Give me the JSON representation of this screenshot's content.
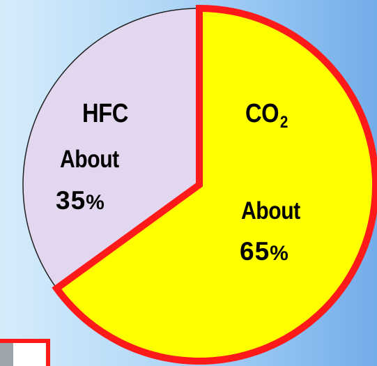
{
  "chart_data": {
    "type": "pie",
    "slices": [
      {
        "label": "CO2",
        "value": 65,
        "color": "#ffff00",
        "callout": "About",
        "value_label": "65%"
      },
      {
        "label": "HFC",
        "value": 35,
        "color": "#e3d7ef",
        "callout": "About",
        "value_label": "35%"
      }
    ],
    "highlight_color": "#ff1a1a",
    "title": "",
    "legend": "none"
  },
  "labels": {
    "hfc_name": "HFC",
    "hfc_about": "About",
    "hfc_value": "35",
    "hfc_pct": "%",
    "co2_prefix": "CO",
    "co2_sub": "2",
    "co2_about": "About",
    "co2_value": "65",
    "co2_pct": "%"
  }
}
